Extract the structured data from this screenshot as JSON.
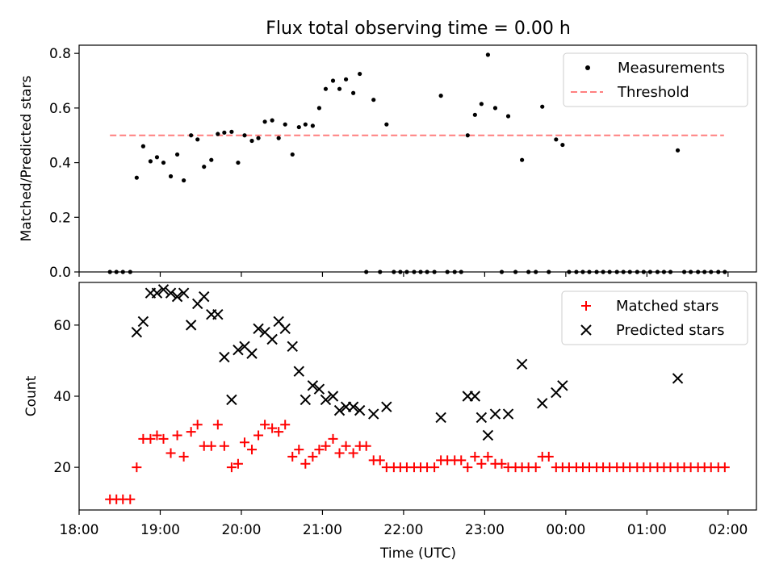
{
  "chart_data": [
    {
      "type": "scatter",
      "title": "Flux total observing time = 0.00 h",
      "xlabel": "",
      "ylabel": "Matched/Predicted stars",
      "ylim": [
        0,
        0.83
      ],
      "yticks": [
        "0.0",
        "0.2",
        "0.4",
        "0.6",
        "0.8"
      ],
      "ytick_values": [
        0,
        0.2,
        0.4,
        0.6,
        0.8
      ],
      "xlim": [
        18.0,
        26.35
      ],
      "legend": {
        "placement": "top-right"
      },
      "threshold": {
        "name": "Threshold",
        "value": 0.5,
        "x_start": 18.38,
        "x_end": 25.95,
        "color": "#ff7f7f"
      },
      "series": [
        {
          "name": "Measurements",
          "color": "#000000",
          "marker": "dot",
          "x": [
            18.38,
            18.46,
            18.54,
            18.63,
            18.71,
            18.79,
            18.88,
            18.96,
            19.04,
            19.13,
            19.21,
            19.29,
            19.38,
            19.46,
            19.54,
            19.63,
            19.71,
            19.79,
            19.88,
            19.96,
            20.04,
            20.13,
            20.21,
            20.29,
            20.38,
            20.46,
            20.54,
            20.63,
            20.71,
            20.79,
            20.88,
            20.96,
            21.04,
            21.13,
            21.21,
            21.29,
            21.38,
            21.46,
            21.54,
            21.63,
            21.71,
            21.79,
            21.88,
            21.96,
            22.04,
            22.13,
            22.21,
            22.29,
            22.38,
            22.46,
            22.54,
            22.63,
            22.71,
            22.79,
            22.88,
            22.96,
            23.04,
            23.13,
            23.21,
            23.29,
            23.38,
            23.46,
            23.54,
            23.63,
            23.71,
            23.79,
            23.88,
            23.96,
            24.04,
            24.13,
            24.21,
            24.29,
            24.38,
            24.46,
            24.54,
            24.63,
            24.71,
            24.79,
            24.88,
            24.96,
            25.04,
            25.13,
            25.21,
            25.29,
            25.38,
            25.46,
            25.54,
            25.63,
            25.71,
            25.79,
            25.88,
            25.96
          ],
          "y": [
            0,
            0,
            0,
            0,
            0.345,
            0.46,
            0.405,
            0.42,
            0.4,
            0.35,
            0.43,
            0.335,
            0.5,
            0.485,
            0.385,
            0.41,
            0.505,
            0.51,
            0.513,
            0.4,
            0.5,
            0.48,
            0.49,
            0.55,
            0.555,
            0.49,
            0.54,
            0.43,
            0.53,
            0.54,
            0.535,
            0.6,
            0.67,
            0.7,
            0.67,
            0.705,
            0.655,
            0.725,
            0,
            0.63,
            0,
            0.54,
            0,
            0,
            0,
            0,
            0,
            0,
            0,
            0.645,
            0,
            0,
            0,
            0.5,
            0.575,
            0.615,
            0.795,
            0.6,
            0,
            0.57,
            0,
            0.41,
            0,
            0,
            0.605,
            0,
            0.485,
            0.465,
            0,
            0,
            0,
            0,
            0,
            0,
            0,
            0,
            0,
            0,
            0,
            0,
            0,
            0,
            0,
            0,
            0.445,
            0,
            0,
            0,
            0,
            0,
            0,
            0
          ]
        }
      ]
    },
    {
      "type": "scatter",
      "title": "",
      "xlabel": "Time (UTC)",
      "ylabel": "Count",
      "ylim": [
        8,
        72
      ],
      "yticks": [
        "20",
        "40",
        "60"
      ],
      "ytick_values": [
        20,
        40,
        60
      ],
      "xlim": [
        18.0,
        26.35
      ],
      "xticks": [
        "18:00",
        "19:00",
        "20:00",
        "21:00",
        "22:00",
        "23:00",
        "00:00",
        "01:00",
        "02:00"
      ],
      "xtick_values": [
        18,
        19,
        20,
        21,
        22,
        23,
        24,
        25,
        26
      ],
      "legend": {
        "placement": "top-right"
      },
      "series": [
        {
          "name": "Matched stars",
          "color": "#ff0000",
          "marker": "plus",
          "x": [
            18.38,
            18.46,
            18.54,
            18.63,
            18.71,
            18.79,
            18.88,
            18.96,
            19.04,
            19.13,
            19.21,
            19.29,
            19.38,
            19.46,
            19.54,
            19.63,
            19.71,
            19.79,
            19.88,
            19.96,
            20.04,
            20.13,
            20.21,
            20.29,
            20.38,
            20.46,
            20.54,
            20.63,
            20.71,
            20.79,
            20.88,
            20.96,
            21.04,
            21.13,
            21.21,
            21.29,
            21.38,
            21.46,
            21.54,
            21.63,
            21.71,
            21.79,
            21.88,
            21.96,
            22.04,
            22.13,
            22.21,
            22.29,
            22.38,
            22.46,
            22.54,
            22.63,
            22.71,
            22.79,
            22.88,
            22.96,
            23.04,
            23.13,
            23.21,
            23.29,
            23.38,
            23.46,
            23.54,
            23.63,
            23.71,
            23.79,
            23.88,
            23.96,
            24.04,
            24.13,
            24.21,
            24.29,
            24.38,
            24.46,
            24.54,
            24.63,
            24.71,
            24.79,
            24.88,
            24.96,
            25.04,
            25.13,
            25.21,
            25.29,
            25.38,
            25.46,
            25.54,
            25.63,
            25.71,
            25.79,
            25.88,
            25.96
          ],
          "y": [
            11,
            11,
            11,
            11,
            20,
            28,
            28,
            29,
            28,
            24,
            29,
            23,
            30,
            32,
            26,
            26,
            32,
            26,
            20,
            21,
            27,
            25,
            29,
            32,
            31,
            30,
            32,
            23,
            25,
            21,
            23,
            25,
            26,
            28,
            24,
            26,
            24,
            26,
            26,
            22,
            22,
            20,
            20,
            20,
            20,
            20,
            20,
            20,
            20,
            22,
            22,
            22,
            22,
            20,
            23,
            21,
            23,
            21,
            21,
            20,
            20,
            20,
            20,
            20,
            23,
            23,
            20,
            20,
            20,
            20,
            20,
            20,
            20,
            20,
            20,
            20,
            20,
            20,
            20,
            20,
            20,
            20,
            20,
            20,
            20,
            20,
            20,
            20,
            20,
            20,
            20,
            20
          ]
        },
        {
          "name": "Predicted stars",
          "color": "#000000",
          "marker": "x",
          "x": [
            18.71,
            18.79,
            18.88,
            18.96,
            19.04,
            19.13,
            19.21,
            19.29,
            19.38,
            19.46,
            19.54,
            19.63,
            19.71,
            19.79,
            19.88,
            19.96,
            20.04,
            20.13,
            20.21,
            20.29,
            20.38,
            20.46,
            20.54,
            20.63,
            20.71,
            20.79,
            20.88,
            20.96,
            21.04,
            21.13,
            21.21,
            21.29,
            21.38,
            21.46,
            21.63,
            21.79,
            22.46,
            22.79,
            22.88,
            22.96,
            23.04,
            23.13,
            23.29,
            23.46,
            23.71,
            23.88,
            23.96,
            25.38
          ],
          "y": [
            58,
            61,
            69,
            69,
            70,
            69,
            68,
            69,
            60,
            66,
            68,
            63,
            63,
            51,
            39,
            53,
            54,
            52,
            59,
            58,
            56,
            61,
            59,
            54,
            47,
            39,
            43,
            42,
            39,
            40,
            36,
            37,
            37,
            36,
            35,
            37,
            34,
            40,
            40,
            34,
            29,
            35,
            35,
            49,
            38,
            41,
            43,
            45
          ]
        }
      ]
    }
  ]
}
